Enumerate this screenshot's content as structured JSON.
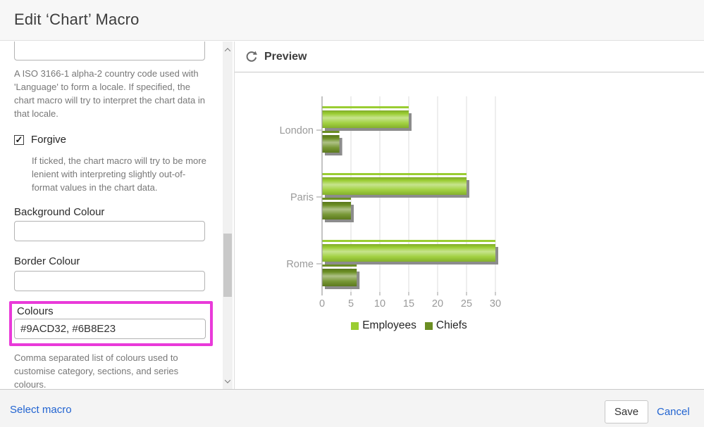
{
  "dialog": {
    "title": "Edit ‘Chart’ Macro"
  },
  "form": {
    "country_help": "A ISO 3166-1 alpha-2 country code used with 'Language' to form a locale. If specified, the chart macro will try to interpret the chart data in that locale.",
    "forgive": {
      "label": "Forgive",
      "checked": true,
      "check_glyph": "✓",
      "help": "If ticked, the chart macro will try to be more lenient with interpreting slightly out-of-format values in the chart data."
    },
    "background_colour": {
      "label": "Background Colour",
      "value": ""
    },
    "border_colour": {
      "label": "Border Colour",
      "value": ""
    },
    "colours": {
      "label": "Colours",
      "value": "#9ACD32, #6B8E23",
      "help": "Comma separated list of colours used to customise category, sections, and series colours.",
      "highlight_color": "#e93ad9"
    }
  },
  "preview": {
    "label": "Preview"
  },
  "chart_data": {
    "type": "bar",
    "orientation": "horizontal",
    "categories": [
      "London",
      "Paris",
      "Rome"
    ],
    "series": [
      {
        "name": "Employees",
        "color": "#9ACD32",
        "values": [
          15,
          25,
          30
        ]
      },
      {
        "name": "Chiefs",
        "color": "#6B8E23",
        "values": [
          3,
          5,
          6
        ]
      }
    ],
    "xlim": [
      0,
      30
    ],
    "xticks": [
      0,
      5,
      10,
      15,
      20,
      25,
      30
    ],
    "grid": true,
    "legend_position": "bottom",
    "shadow_color": "#8c8c8c"
  },
  "footer": {
    "select_macro": "Select macro",
    "save": "Save",
    "cancel": "Cancel",
    "link_color": "#2264d1"
  }
}
